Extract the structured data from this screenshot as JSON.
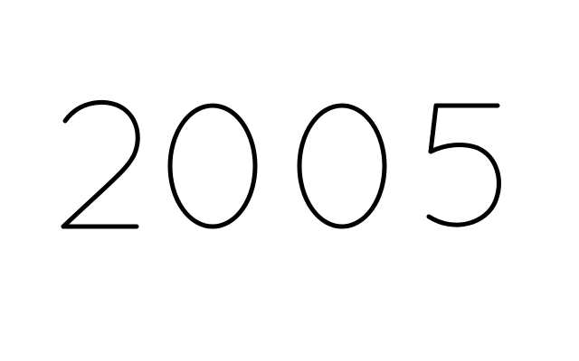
{
  "display": {
    "text": "2005",
    "digits": [
      "2",
      "0",
      "0",
      "5"
    ]
  },
  "colors": {
    "background": "#ffffff",
    "stroke": "#000000"
  }
}
